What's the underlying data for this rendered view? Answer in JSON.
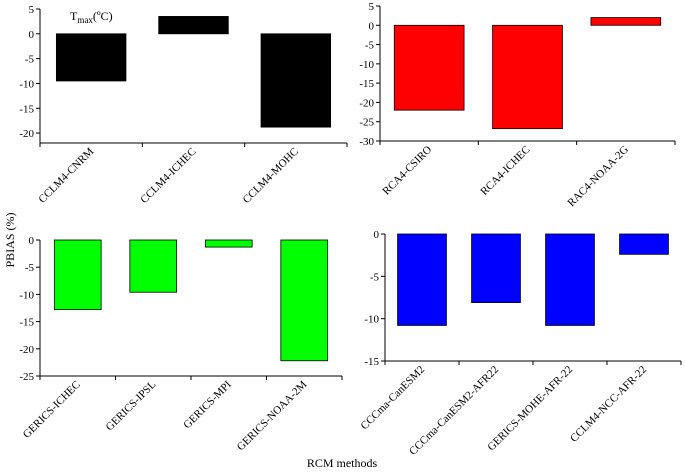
{
  "figure": {
    "ylabel": "PBIAS (%)",
    "xlabel": "RCM methods"
  },
  "chart_data": [
    {
      "type": "bar",
      "annotation_main": "T",
      "annotation_sub": "max",
      "annotation_unit": "(ºC)",
      "categories": [
        "CCLM4-CNRM",
        "CCLM4-ICHEC",
        "CCLM4-MOHC"
      ],
      "values": [
        -9.5,
        3.5,
        -18.8
      ],
      "ylim": [
        -22,
        5
      ],
      "yticks": [
        5,
        0,
        -5,
        -10,
        -15,
        -20
      ],
      "color": "#000000"
    },
    {
      "type": "bar",
      "categories": [
        "RCA4-CSIRO",
        "RCA4-ICHEC",
        "RAC4-NOAA-2G"
      ],
      "values": [
        -22,
        -26.8,
        2
      ],
      "ylim": [
        -30,
        5
      ],
      "yticks": [
        5,
        0,
        -5,
        -10,
        -15,
        -20,
        -25,
        -30
      ],
      "color": "#ff0000"
    },
    {
      "type": "bar",
      "categories": [
        "GERICS-ICHEC",
        "GERICS-IPSL",
        "GERICS-MPI",
        "GERICS-NOAA-2M"
      ],
      "values": [
        -12.8,
        -9.6,
        -1.3,
        -22.2
      ],
      "ylim": [
        -25,
        0
      ],
      "yticks": [
        0,
        -5,
        -10,
        -15,
        -20,
        -25
      ],
      "color": "#00ff00"
    },
    {
      "type": "bar",
      "categories": [
        "CCCma-CanESM2",
        "CCCma-CanESM2-AFR22",
        "GERICS-MOHE-AFR-22",
        "CCLM4-NCC-AFR-22"
      ],
      "values": [
        -10.8,
        -8.1,
        -10.8,
        -2.4
      ],
      "ylim": [
        -15,
        0
      ],
      "yticks": [
        0,
        -5,
        -10,
        -15
      ],
      "color": "#0000ff"
    }
  ]
}
